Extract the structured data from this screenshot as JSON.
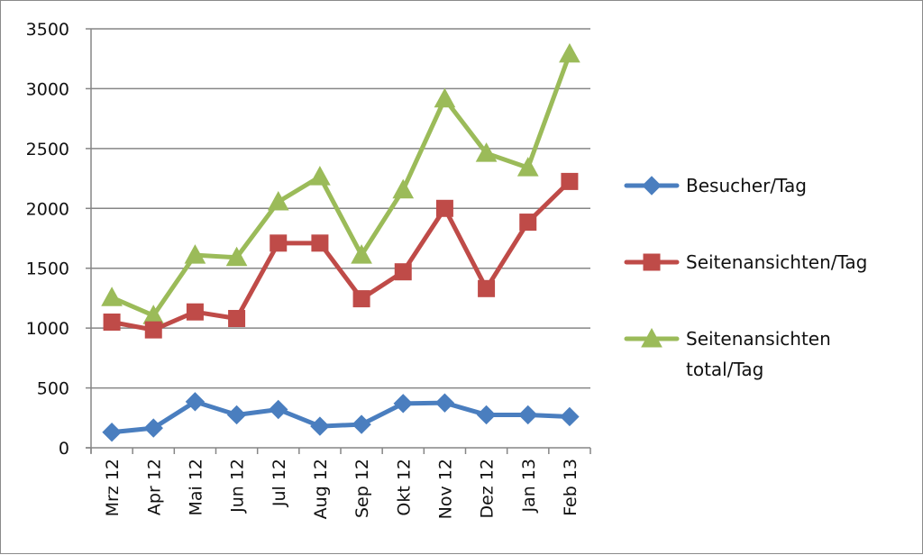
{
  "chart_data": {
    "type": "line",
    "title": "",
    "xlabel": "",
    "ylabel": "",
    "ylim": [
      0,
      3500
    ],
    "yticks": [
      0,
      500,
      1000,
      1500,
      2000,
      2500,
      3000,
      3500
    ],
    "grid": true,
    "legend_position": "right",
    "categories": [
      "Mrz 12",
      "Apr 12",
      "Mai 12",
      "Jun 12",
      "Jul 12",
      "Aug 12",
      "Sep 12",
      "Okt 12",
      "Nov 12",
      "Dez 12",
      "Jan 13",
      "Feb 13"
    ],
    "series": [
      {
        "name": "Besucher/Tag",
        "color": "#4a7ebf",
        "marker": "diamond",
        "values": [
          130,
          165,
          385,
          275,
          320,
          180,
          195,
          370,
          375,
          275,
          275,
          260
        ]
      },
      {
        "name": "Seitenansichten/Tag",
        "color": "#bf4b48",
        "marker": "square",
        "values": [
          1050,
          985,
          1135,
          1080,
          1710,
          1710,
          1245,
          1470,
          2000,
          1330,
          1885,
          2225
        ]
      },
      {
        "name": "Seitenansichten total/Tag",
        "legend_lines": [
          "Seitenansichten",
          "total/Tag"
        ],
        "color": "#9bbb59",
        "marker": "triangle",
        "values": [
          1255,
          1105,
          1610,
          1590,
          2055,
          2265,
          1610,
          2155,
          2915,
          2460,
          2340,
          3290
        ]
      }
    ]
  }
}
